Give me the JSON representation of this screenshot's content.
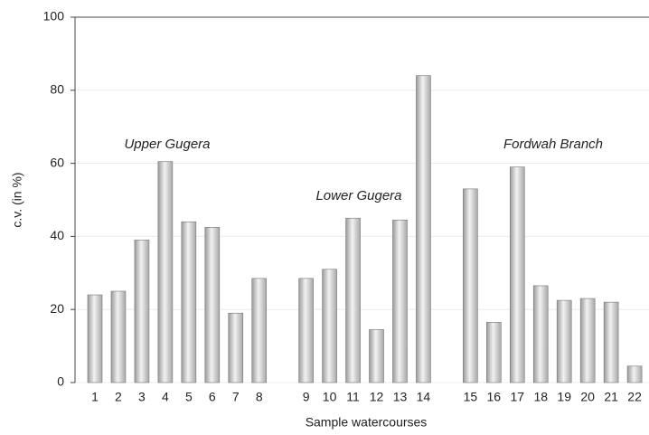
{
  "chart_data": {
    "type": "bar",
    "x_label": "Sample watercourses",
    "y_label": "c.v. (in %)",
    "categories": [
      "1",
      "2",
      "3",
      "4",
      "5",
      "6",
      "7",
      "8",
      null,
      "9",
      "10",
      "11",
      "12",
      "13",
      "14",
      null,
      "15",
      "16",
      "17",
      "18",
      "19",
      "20",
      "21",
      "22"
    ],
    "values": [
      24,
      25,
      39,
      60.5,
      44,
      42.5,
      19,
      28.5,
      null,
      28.5,
      31,
      45,
      14.5,
      44.5,
      84,
      null,
      53,
      16.5,
      59,
      26.5,
      22.5,
      23,
      22,
      4.5
    ],
    "color": "#c8c8c8",
    "ylim": [
      0,
      100
    ],
    "yticks": [
      0,
      20,
      40,
      60,
      80,
      100
    ],
    "grid": true,
    "annotations": [
      "Upper Gugera",
      "Lower Gugera",
      "Fordwah Branch"
    ]
  }
}
